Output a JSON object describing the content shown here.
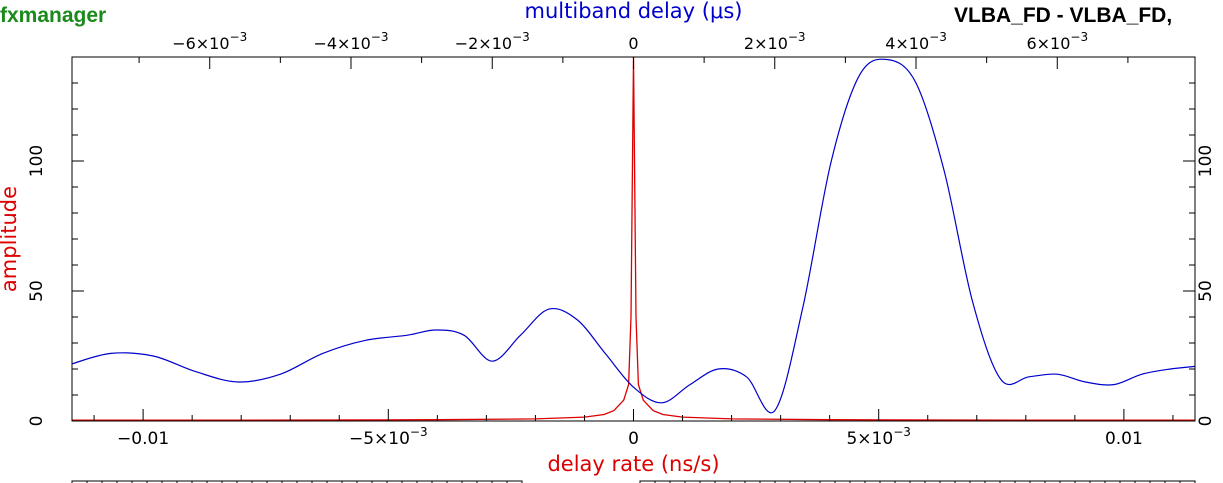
{
  "header": {
    "program_name": "fxmanager",
    "baseline_title": "VLBA_FD - VLBA_FD,"
  },
  "colors": {
    "program_name": "#1a8a1a",
    "delay_curve": "#0000cc",
    "rate_curve": "#dd0000",
    "axis": "#000000"
  },
  "chart_data": {
    "type": "line",
    "ylabel": "amplitude",
    "ylim": [
      0,
      140
    ],
    "y_ticks": [
      {
        "value": 0,
        "label": "0"
      },
      {
        "value": 50,
        "label": "50"
      },
      {
        "value": 100,
        "label": "100"
      }
    ],
    "bottom_axis": {
      "label": "delay rate (ns/s)",
      "range": [
        -0.01145,
        0.01145
      ],
      "ticks": [
        {
          "value": -0.01,
          "label": "−0.01"
        },
        {
          "value": -0.005,
          "label": "−5×10",
          "exp": "−3"
        },
        {
          "value": 0,
          "label": "0"
        },
        {
          "value": 0.005,
          "label": "5×10",
          "exp": "−3"
        },
        {
          "value": 0.01,
          "label": "0.01"
        }
      ]
    },
    "top_axis": {
      "label": "multiband delay (μs)",
      "range": [
        -0.00795,
        0.00795
      ],
      "ticks": [
        {
          "value": -0.006,
          "label": "−6×10",
          "exp": "−3"
        },
        {
          "value": -0.004,
          "label": "−4×10",
          "exp": "−3"
        },
        {
          "value": -0.002,
          "label": "−2×10",
          "exp": "−3"
        },
        {
          "value": 0,
          "label": "0"
        },
        {
          "value": 0.002,
          "label": "2×10",
          "exp": "−3"
        },
        {
          "value": 0.004,
          "label": "4×10",
          "exp": "−3"
        },
        {
          "value": 0.006,
          "label": "6×10",
          "exp": "−3"
        }
      ]
    },
    "series": [
      {
        "axis": "top",
        "x": [
          -0.00795,
          -0.0074,
          -0.0068,
          -0.0062,
          -0.0056,
          -0.005,
          -0.0044,
          -0.0038,
          -0.0032,
          -0.0028,
          -0.0024,
          -0.002,
          -0.0016,
          -0.0012,
          -0.0008,
          -0.0004,
          0.0,
          0.0004,
          0.0008,
          0.0012,
          0.0016,
          0.002,
          0.0024,
          0.0028,
          0.0032,
          0.0036,
          0.004,
          0.0044,
          0.0048,
          0.0052,
          0.0056,
          0.006,
          0.0064,
          0.0068,
          0.0072,
          0.0076,
          0.00795
        ],
        "values": [
          22,
          26,
          25,
          19,
          15,
          18,
          26,
          31,
          33,
          35,
          33,
          23,
          33,
          43,
          39,
          26,
          13,
          7,
          14,
          20,
          17,
          4,
          44,
          100,
          133,
          139,
          130,
          96,
          46,
          16,
          17,
          18,
          15,
          14,
          18,
          20,
          21
        ]
      },
      {
        "axis": "bottom",
        "x": [
          -0.01145,
          -0.008,
          -0.004,
          -0.002,
          -0.001,
          -0.0006,
          -0.0004,
          -0.0002,
          -0.0001,
          -5e-05,
          0.0,
          5e-05,
          0.0001,
          0.0002,
          0.0004,
          0.0006,
          0.001,
          0.002,
          0.004,
          0.008,
          0.01145
        ],
        "values": [
          0.3,
          0.3,
          0.5,
          0.8,
          1.5,
          2.5,
          4,
          8,
          14,
          40,
          140,
          40,
          14,
          8,
          4,
          2.5,
          1.5,
          0.8,
          0.5,
          0.3,
          0.3
        ]
      }
    ]
  }
}
